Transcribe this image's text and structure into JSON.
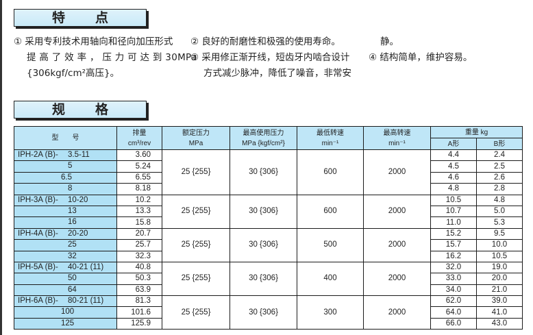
{
  "sections": {
    "features_title": [
      "特",
      "点"
    ],
    "spec_title": [
      "规",
      "格"
    ]
  },
  "features": {
    "item1": [
      "① 采用专利技术用轴向和径向加压形式",
      "提 高 了 效 率 ， 压 力 可 达 到 30MPa",
      "{306kgf/cm²高压}。"
    ],
    "item2": [
      "② 良好的耐磨性和极强的使用寿命。"
    ],
    "item3": [
      "③ 采用修正渐开线，短齿牙内啮合设计",
      "方式减少脉冲，降低了噪音，非常安"
    ],
    "item3_cont": "静。",
    "item4": [
      "④ 结构简单，维护容易。"
    ]
  },
  "table": {
    "headers": {
      "model": "型　　号",
      "disp": "排量",
      "disp_unit": "cm³/rev",
      "rated": "额定压力",
      "rated_unit": "MPa",
      "max_press": "最高使用压力",
      "max_press_unit": "MPa {kgf/cm²}",
      "min_speed": "最低转速",
      "min_speed_unit": "min⁻¹",
      "max_speed": "最高转速",
      "max_speed_unit": "min⁻¹",
      "weight": "重量  kg",
      "weight_a": "A形",
      "weight_b": "B形"
    },
    "groups": [
      {
        "prefix": "IPH-2A (B)-",
        "rated": "25 {255}",
        "max_press": "30 {306}",
        "min_speed": "600",
        "max_speed": "2000",
        "rows": [
          {
            "size": "3.5-11",
            "disp": "3.60",
            "a": "4.4",
            "b": "2.4"
          },
          {
            "size": "5",
            "disp": "5.24",
            "a": "4.5",
            "b": "2.5"
          },
          {
            "size": "6.5",
            "disp": "6.55",
            "a": "4.6",
            "b": "2.6"
          },
          {
            "size": "8",
            "disp": "8.18",
            "a": "4.8",
            "b": "2.8"
          }
        ]
      },
      {
        "prefix": "IPH-3A (B)-",
        "rated": "25 {255}",
        "max_press": "30 {306}",
        "min_speed": "600",
        "max_speed": "2000",
        "rows": [
          {
            "size": "10-20",
            "disp": "10.2",
            "a": "10.5",
            "b": "4.8"
          },
          {
            "size": "13",
            "disp": "13.3",
            "a": "10.7",
            "b": "5.0"
          },
          {
            "size": "16",
            "disp": "15.8",
            "a": "11.0",
            "b": "5.3"
          }
        ]
      },
      {
        "prefix": "IPH-4A (B)-",
        "rated": "25 {255}",
        "max_press": "30 {306}",
        "min_speed": "500",
        "max_speed": "2000",
        "rows": [
          {
            "size": "20-20",
            "disp": "20.7",
            "a": "15.2",
            "b": "9.5"
          },
          {
            "size": "25",
            "disp": "25.7",
            "a": "15.7",
            "b": "10.0"
          },
          {
            "size": "32",
            "disp": "32.3",
            "a": "16.2",
            "b": "10.5"
          }
        ]
      },
      {
        "prefix": "IPH-5A (B)-",
        "rated": "25 {255}",
        "max_press": "30 {306}",
        "min_speed": "400",
        "max_speed": "2000",
        "rows": [
          {
            "size": "40-21 (11)",
            "disp": "40.8",
            "a": "32.0",
            "b": "19.0"
          },
          {
            "size": "50",
            "disp": "50.3",
            "a": "33.0",
            "b": "20.0"
          },
          {
            "size": "64",
            "disp": "63.9",
            "a": "34.0",
            "b": "21.0"
          }
        ]
      },
      {
        "prefix": "IPH-6A (B)-",
        "rated": "25 {255}",
        "max_press": "30 {306}",
        "min_speed": "300",
        "max_speed": "2000",
        "rows": [
          {
            "size": "80-21 (11)",
            "disp": "81.3",
            "a": "62.0",
            "b": "39.0"
          },
          {
            "size": "100",
            "disp": "101.6",
            "a": "64.0",
            "b": "41.0"
          },
          {
            "size": "125",
            "disp": "125.9",
            "a": "66.0",
            "b": "43.0"
          }
        ]
      }
    ]
  }
}
